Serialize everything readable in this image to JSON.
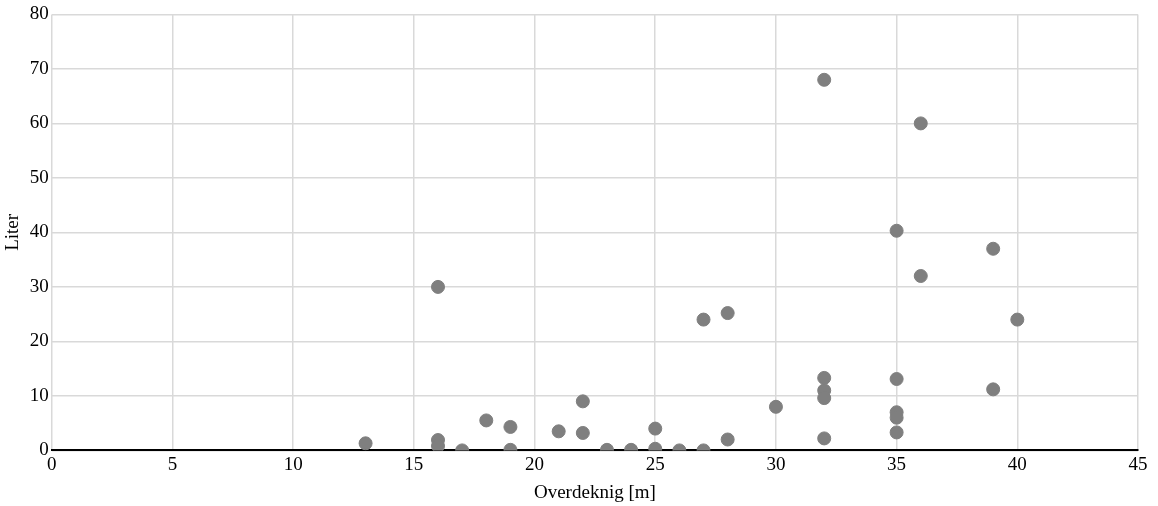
{
  "chart_data": {
    "type": "scatter",
    "xlabel": "Overdeknig [m]",
    "ylabel": "Liter",
    "x": [
      13,
      16,
      16,
      16,
      17,
      18,
      19,
      19,
      21,
      22,
      22,
      23,
      24,
      25,
      25,
      26,
      27,
      27,
      28,
      28,
      30,
      32,
      32,
      32,
      32,
      32,
      35,
      35,
      35,
      35,
      35,
      36,
      36,
      39,
      39,
      40
    ],
    "values": [
      1.3,
      30,
      1.9,
      0.8,
      0,
      5.5,
      4.3,
      0.1,
      3.5,
      9,
      3.2,
      0.1,
      0.1,
      4,
      0.3,
      0,
      0,
      24,
      25.2,
      2,
      8,
      68,
      13.3,
      11,
      9.6,
      2.2,
      40.3,
      13.1,
      7,
      6,
      3.3,
      60,
      32,
      37,
      11.2,
      24
    ],
    "color": "#7f7f7f",
    "marker": "circle",
    "xlim": [
      0,
      45
    ],
    "xticks": [
      0,
      5,
      10,
      15,
      20,
      25,
      30,
      35,
      40,
      45
    ],
    "ylim": [
      0,
      80
    ],
    "yticks": [
      0,
      10,
      20,
      30,
      40,
      50,
      60,
      70,
      80
    ],
    "grid": true,
    "legend": false
  }
}
